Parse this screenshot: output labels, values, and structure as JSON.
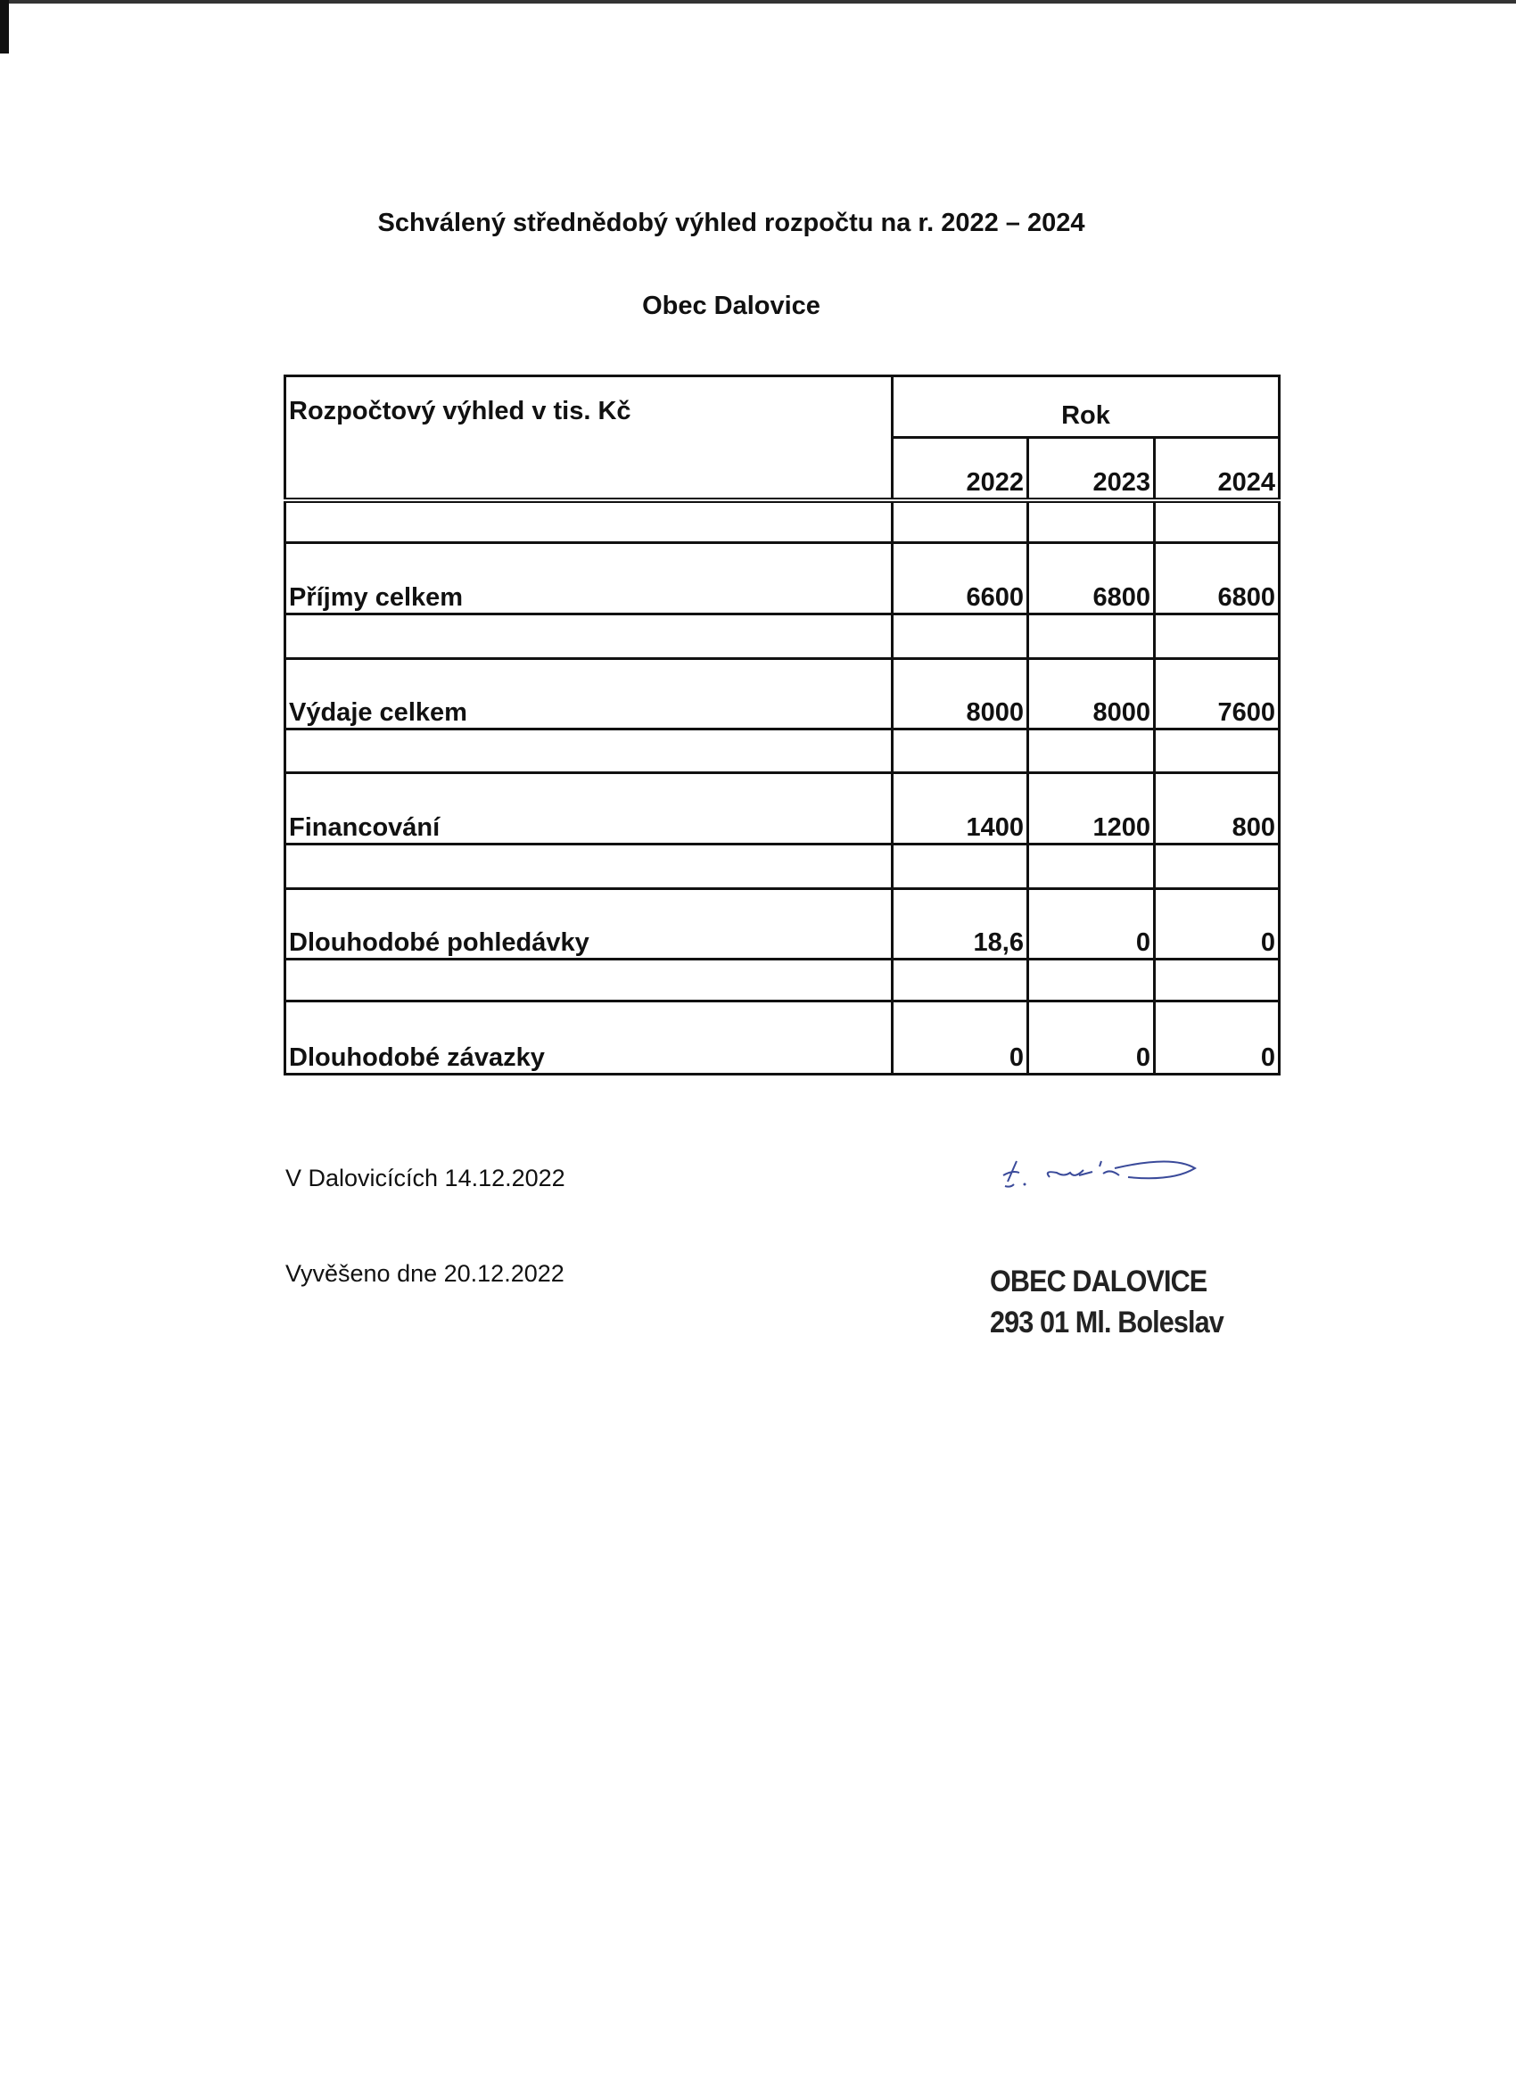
{
  "title": "Schválený střednědobý výhled rozpočtu na r. 2022 – 2024",
  "subtitle": "Obec Dalovice",
  "table": {
    "header_label": "Rozpočtový výhled v tis. Kč",
    "year_group": "Rok",
    "years": [
      "2022",
      "2023",
      "2024"
    ],
    "rows": [
      {
        "label": "Příjmy celkem",
        "values": [
          "6600",
          "6800",
          "6800"
        ]
      },
      {
        "label": "Výdaje celkem",
        "values": [
          "8000",
          "8000",
          "7600"
        ]
      },
      {
        "label": "Financování",
        "values": [
          "1400",
          "1200",
          "800"
        ]
      },
      {
        "label": "Dlouhodobé pohledávky",
        "values": [
          "18,6",
          "0",
          "0"
        ]
      },
      {
        "label": "Dlouhodobé závazky",
        "values": [
          "0",
          "0",
          "0"
        ]
      }
    ]
  },
  "footer": {
    "place_date": "V Dalovicících 14.12.2022",
    "posted": "Vyvěšeno dne 20.12.2022"
  },
  "stamp": {
    "line1": "OBEC DALOVICE",
    "line2": "293 01 Ml. Boleslav"
  },
  "signature_color": "#3a4a9a"
}
